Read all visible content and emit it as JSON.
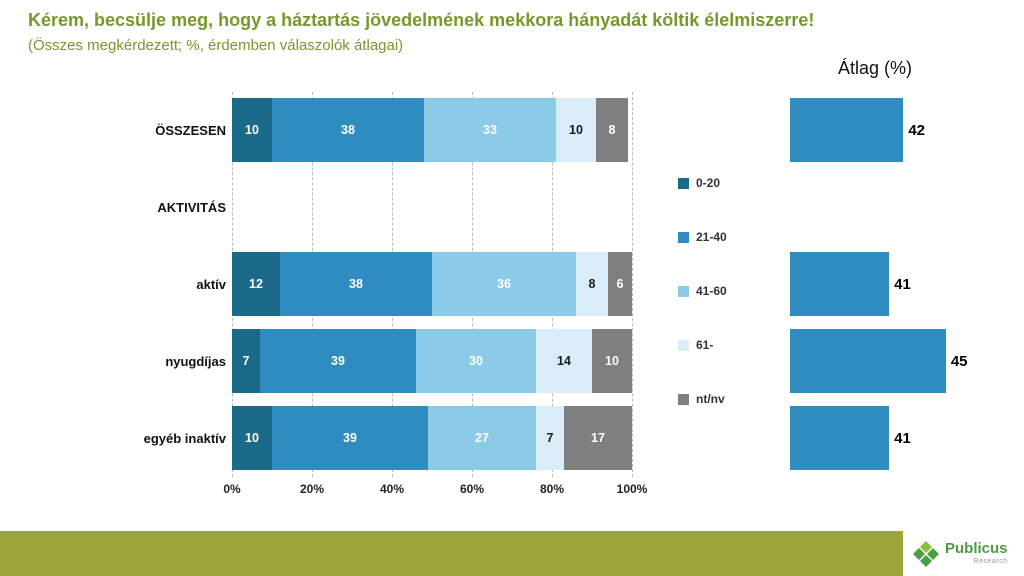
{
  "header": {
    "title": "Kérem, becsülje meg, hogy a háztartás jövedelmének mekkora hányadát költik élelmiszerre!",
    "subtitle": "(Összes megkérdezett; %, érdemben válaszolók átlagai)",
    "title_color": "#76982c"
  },
  "chart_data": [
    {
      "type": "bar",
      "orientation": "horizontal",
      "stacked": true,
      "categories": [
        "ÖSSZESEN",
        "AKTIVITÁS",
        "aktív",
        "nyugdíjas",
        "egyéb inaktív"
      ],
      "series": [
        {
          "name": "0-20",
          "color": "#1b6a89",
          "label_color": "#ffffff",
          "values": [
            10,
            null,
            12,
            7,
            10
          ]
        },
        {
          "name": "21-40",
          "color": "#2e8cc0",
          "label_color": "#ffffff",
          "values": [
            38,
            null,
            38,
            39,
            39
          ]
        },
        {
          "name": "41-60",
          "color": "#8ccbe8",
          "label_color": "#ffffff",
          "values": [
            33,
            null,
            36,
            30,
            27
          ]
        },
        {
          "name": "61-",
          "color": "#d9ecf7",
          "label_color": "#1a1a1a",
          "values": [
            10,
            null,
            8,
            14,
            7
          ]
        },
        {
          "name": "nt/nv",
          "color": "#7f7f7f",
          "label_color": "#ffffff",
          "values": [
            8,
            null,
            6,
            10,
            17
          ]
        }
      ],
      "x_ticks": [
        "0%",
        "20%",
        "40%",
        "60%",
        "80%",
        "100%"
      ],
      "xlim": [
        0,
        100
      ],
      "grid": true,
      "legend_position": "right"
    },
    {
      "type": "bar",
      "orientation": "horizontal",
      "title": "Átlag (%)",
      "categories": [
        "ÖSSZESEN",
        "AKTIVITÁS",
        "aktív",
        "nyugdíjas",
        "egyéb inaktív"
      ],
      "values": [
        42,
        null,
        41,
        45,
        41
      ],
      "color": "#2e8cc0",
      "xlim": [
        34,
        46
      ],
      "grid": false
    }
  ],
  "footer": {
    "brand": "Publicus",
    "brand_sub": "Research",
    "band_color": "#9ea63b"
  }
}
